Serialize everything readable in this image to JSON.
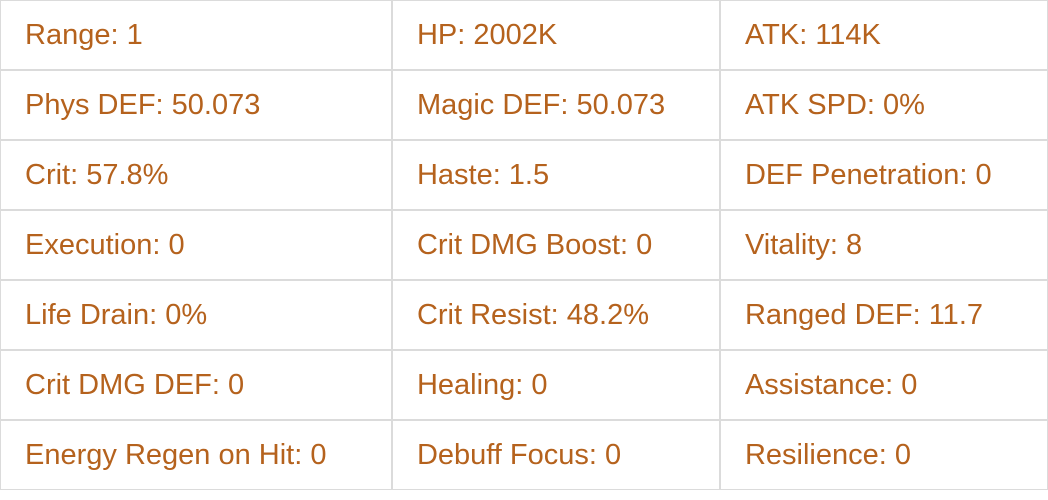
{
  "colors": {
    "text": "#b5621d",
    "border": "#dbdbdb",
    "background": "#ffffff"
  },
  "stats_table": {
    "rows": [
      [
        "Range: 1",
        "HP: 2002K",
        "ATK: 114K"
      ],
      [
        "Phys DEF: 50.073",
        "Magic DEF: 50.073",
        "ATK SPD: 0%"
      ],
      [
        "Crit: 57.8%",
        "Haste: 1.5",
        "DEF Penetration: 0"
      ],
      [
        "Execution: 0",
        "Crit DMG Boost: 0",
        "Vitality: 8"
      ],
      [
        "Life Drain: 0%",
        "Crit Resist: 48.2%",
        "Ranged DEF: 11.7"
      ],
      [
        "Crit DMG DEF: 0",
        "Healing: 0",
        "Assistance: 0"
      ],
      [
        "Energy Regen on Hit: 0",
        "Debuff Focus: 0",
        "Resilience: 0"
      ]
    ]
  }
}
